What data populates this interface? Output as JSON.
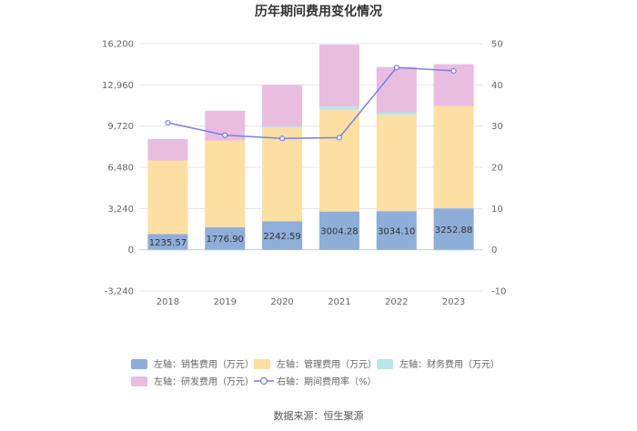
{
  "chart_data": {
    "type": "bar",
    "title": "历年期间费用变化情况",
    "categories": [
      "2018",
      "2019",
      "2020",
      "2021",
      "2022",
      "2023"
    ],
    "left_axis": {
      "min": -3240,
      "max": 16200,
      "ticks": [
        -3240,
        0,
        3240,
        6480,
        9720,
        12960,
        16200
      ],
      "tick_labels": [
        "-3,240",
        "0",
        "3,240",
        "6,480",
        "9,720",
        "12,960",
        "16,200"
      ]
    },
    "right_axis": {
      "min": -10,
      "max": 50,
      "ticks": [
        -10,
        0,
        10,
        20,
        30,
        40,
        50
      ],
      "tick_labels": [
        "-10",
        "0",
        "10",
        "20",
        "30",
        "40",
        "50"
      ]
    },
    "series": [
      {
        "name": "左轴：销售费用（万元）",
        "type": "bar",
        "color": "#8eadd8",
        "values": [
          1235.57,
          1776.9,
          2242.59,
          3004.28,
          3034.1,
          3252.88
        ],
        "labels": [
          "1235.57",
          "1776.90",
          "2242.59",
          "3004.28",
          "3034.10",
          "3252.88"
        ]
      },
      {
        "name": "左轴：管理费用（万元）",
        "type": "bar",
        "color": "#fddfa3",
        "values": [
          5780,
          6800,
          7330,
          8000,
          7570,
          8050
        ]
      },
      {
        "name": "左轴：财务费用（万元）",
        "type": "bar",
        "color": "#b7e7e8",
        "values": [
          -60,
          -60,
          120,
          250,
          200,
          -50
        ]
      },
      {
        "name": "左轴：研发费用（万元）",
        "type": "bar",
        "color": "#e8bde0",
        "values": [
          1680,
          2350,
          3270,
          4870,
          3560,
          3280
        ]
      },
      {
        "name": "右轴：期间费用率（%）",
        "type": "line",
        "color": "#7b7fe6",
        "values": [
          30.8,
          27.8,
          27.0,
          27.2,
          44.2,
          43.4
        ]
      }
    ],
    "source": "数据来源：恒生聚源"
  }
}
